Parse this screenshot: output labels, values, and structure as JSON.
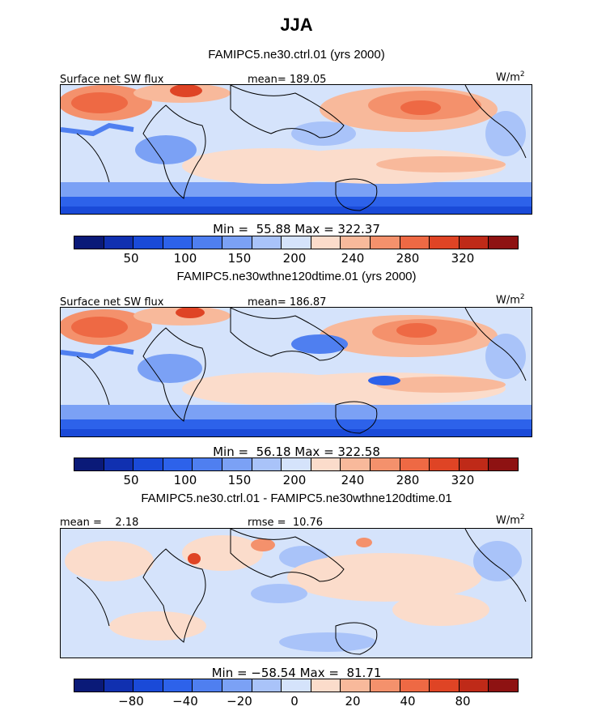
{
  "title": "JJA",
  "colors": [
    "#0a1a78",
    "#1030b0",
    "#1a4ad8",
    "#2d62ea",
    "#4f7ff0",
    "#7ba1f5",
    "#a9c3f9",
    "#d5e3fb",
    "#fbdccb",
    "#f8b99b",
    "#f4916c",
    "#ee6944",
    "#df4425",
    "#bf2a18",
    "#8e1212"
  ],
  "panels": [
    {
      "case": "FAMIPC5.ne30.ctrl.01 (yrs 2000)",
      "left_label": "Surface net SW flux",
      "mid_label": "mean= 189.05",
      "units": "W/m",
      "units_sup": "2",
      "minmax": "Min =  55.88 Max = 322.37",
      "ticks": [
        "50",
        "100",
        "150",
        "200",
        "240",
        "280",
        "320"
      ]
    },
    {
      "case": "FAMIPC5.ne30wthne120dtime.01 (yrs 2000)",
      "left_label": "Surface net SW flux",
      "mid_label": "mean= 186.87",
      "units": "W/m",
      "units_sup": "2",
      "minmax": "Min =  56.18 Max = 322.58",
      "ticks": [
        "50",
        "100",
        "150",
        "200",
        "240",
        "280",
        "320"
      ]
    },
    {
      "case": "FAMIPC5.ne30.ctrl.01 - FAMIPC5.ne30wthne120dtime.01",
      "left_label": "mean =    2.18",
      "mid_label": "rmse =  10.76",
      "units": "W/m",
      "units_sup": "2",
      "minmax": "Min = −58.54 Max =  81.71",
      "ticks": [
        "−80",
        "−40",
        "−20",
        "0",
        "20",
        "40",
        "80"
      ]
    }
  ],
  "chart_data": [
    {
      "type": "heatmap",
      "title": "Surface net SW flux",
      "subtitle": "FAMIPC5.ne30.ctrl.01 (yrs 2000)",
      "units": "W/m2",
      "mean": 189.05,
      "min": 55.88,
      "max": 322.37,
      "colorbar_ticks": [
        50,
        100,
        150,
        200,
        240,
        280,
        320
      ]
    },
    {
      "type": "heatmap",
      "title": "Surface net SW flux",
      "subtitle": "FAMIPC5.ne30wthne120dtime.01 (yrs 2000)",
      "units": "W/m2",
      "mean": 186.87,
      "min": 56.18,
      "max": 322.58,
      "colorbar_ticks": [
        50,
        100,
        150,
        200,
        240,
        280,
        320
      ]
    },
    {
      "type": "heatmap",
      "title": "FAMIPC5.ne30.ctrl.01 - FAMIPC5.ne30wthne120dtime.01",
      "units": "W/m2",
      "mean": 2.18,
      "rmse": 10.76,
      "min": -58.54,
      "max": 81.71,
      "colorbar_ticks": [
        -80,
        -40,
        -20,
        0,
        20,
        40,
        80
      ]
    }
  ]
}
